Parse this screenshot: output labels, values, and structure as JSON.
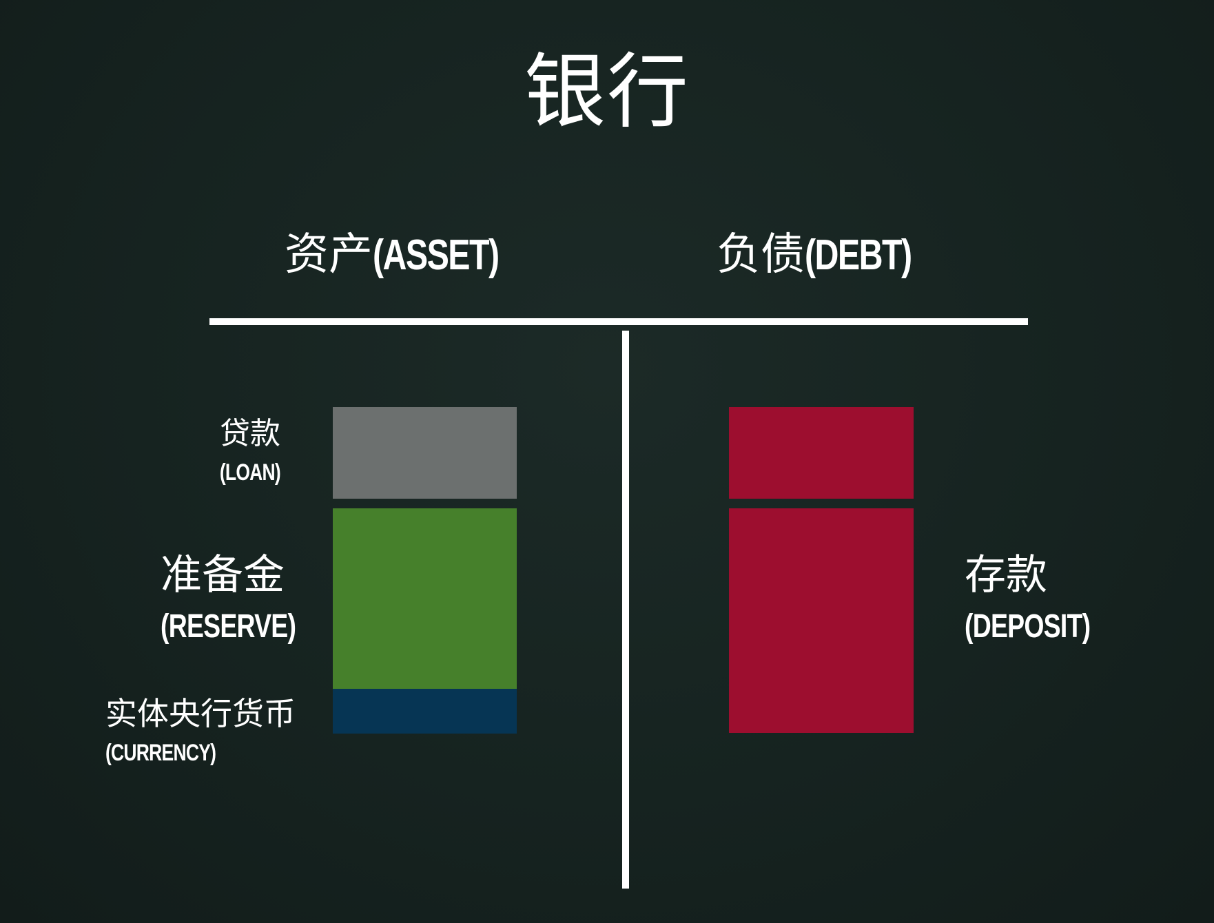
{
  "title": "银行",
  "asset_heading": {
    "zh": "资产",
    "en": "(ASSET)"
  },
  "debt_heading": {
    "zh": "负债",
    "en": "(DEBT)"
  },
  "asset_items": {
    "loan": {
      "zh": "贷款",
      "en": "(LOAN)"
    },
    "reserve": {
      "zh": "准备金",
      "en": "(RESERVE)"
    },
    "currency": {
      "zh": "实体央行货币",
      "en": "(CURRENCY)"
    }
  },
  "debt_items": {
    "deposit": {
      "zh": "存款",
      "en": "(DEPOSIT)"
    }
  },
  "colors": {
    "background": "#162320",
    "loan": "#6c706f",
    "reserve": "#46802b",
    "currency": "#063554",
    "deposit": "#9d0e2f",
    "lines": "#ffffff"
  }
}
